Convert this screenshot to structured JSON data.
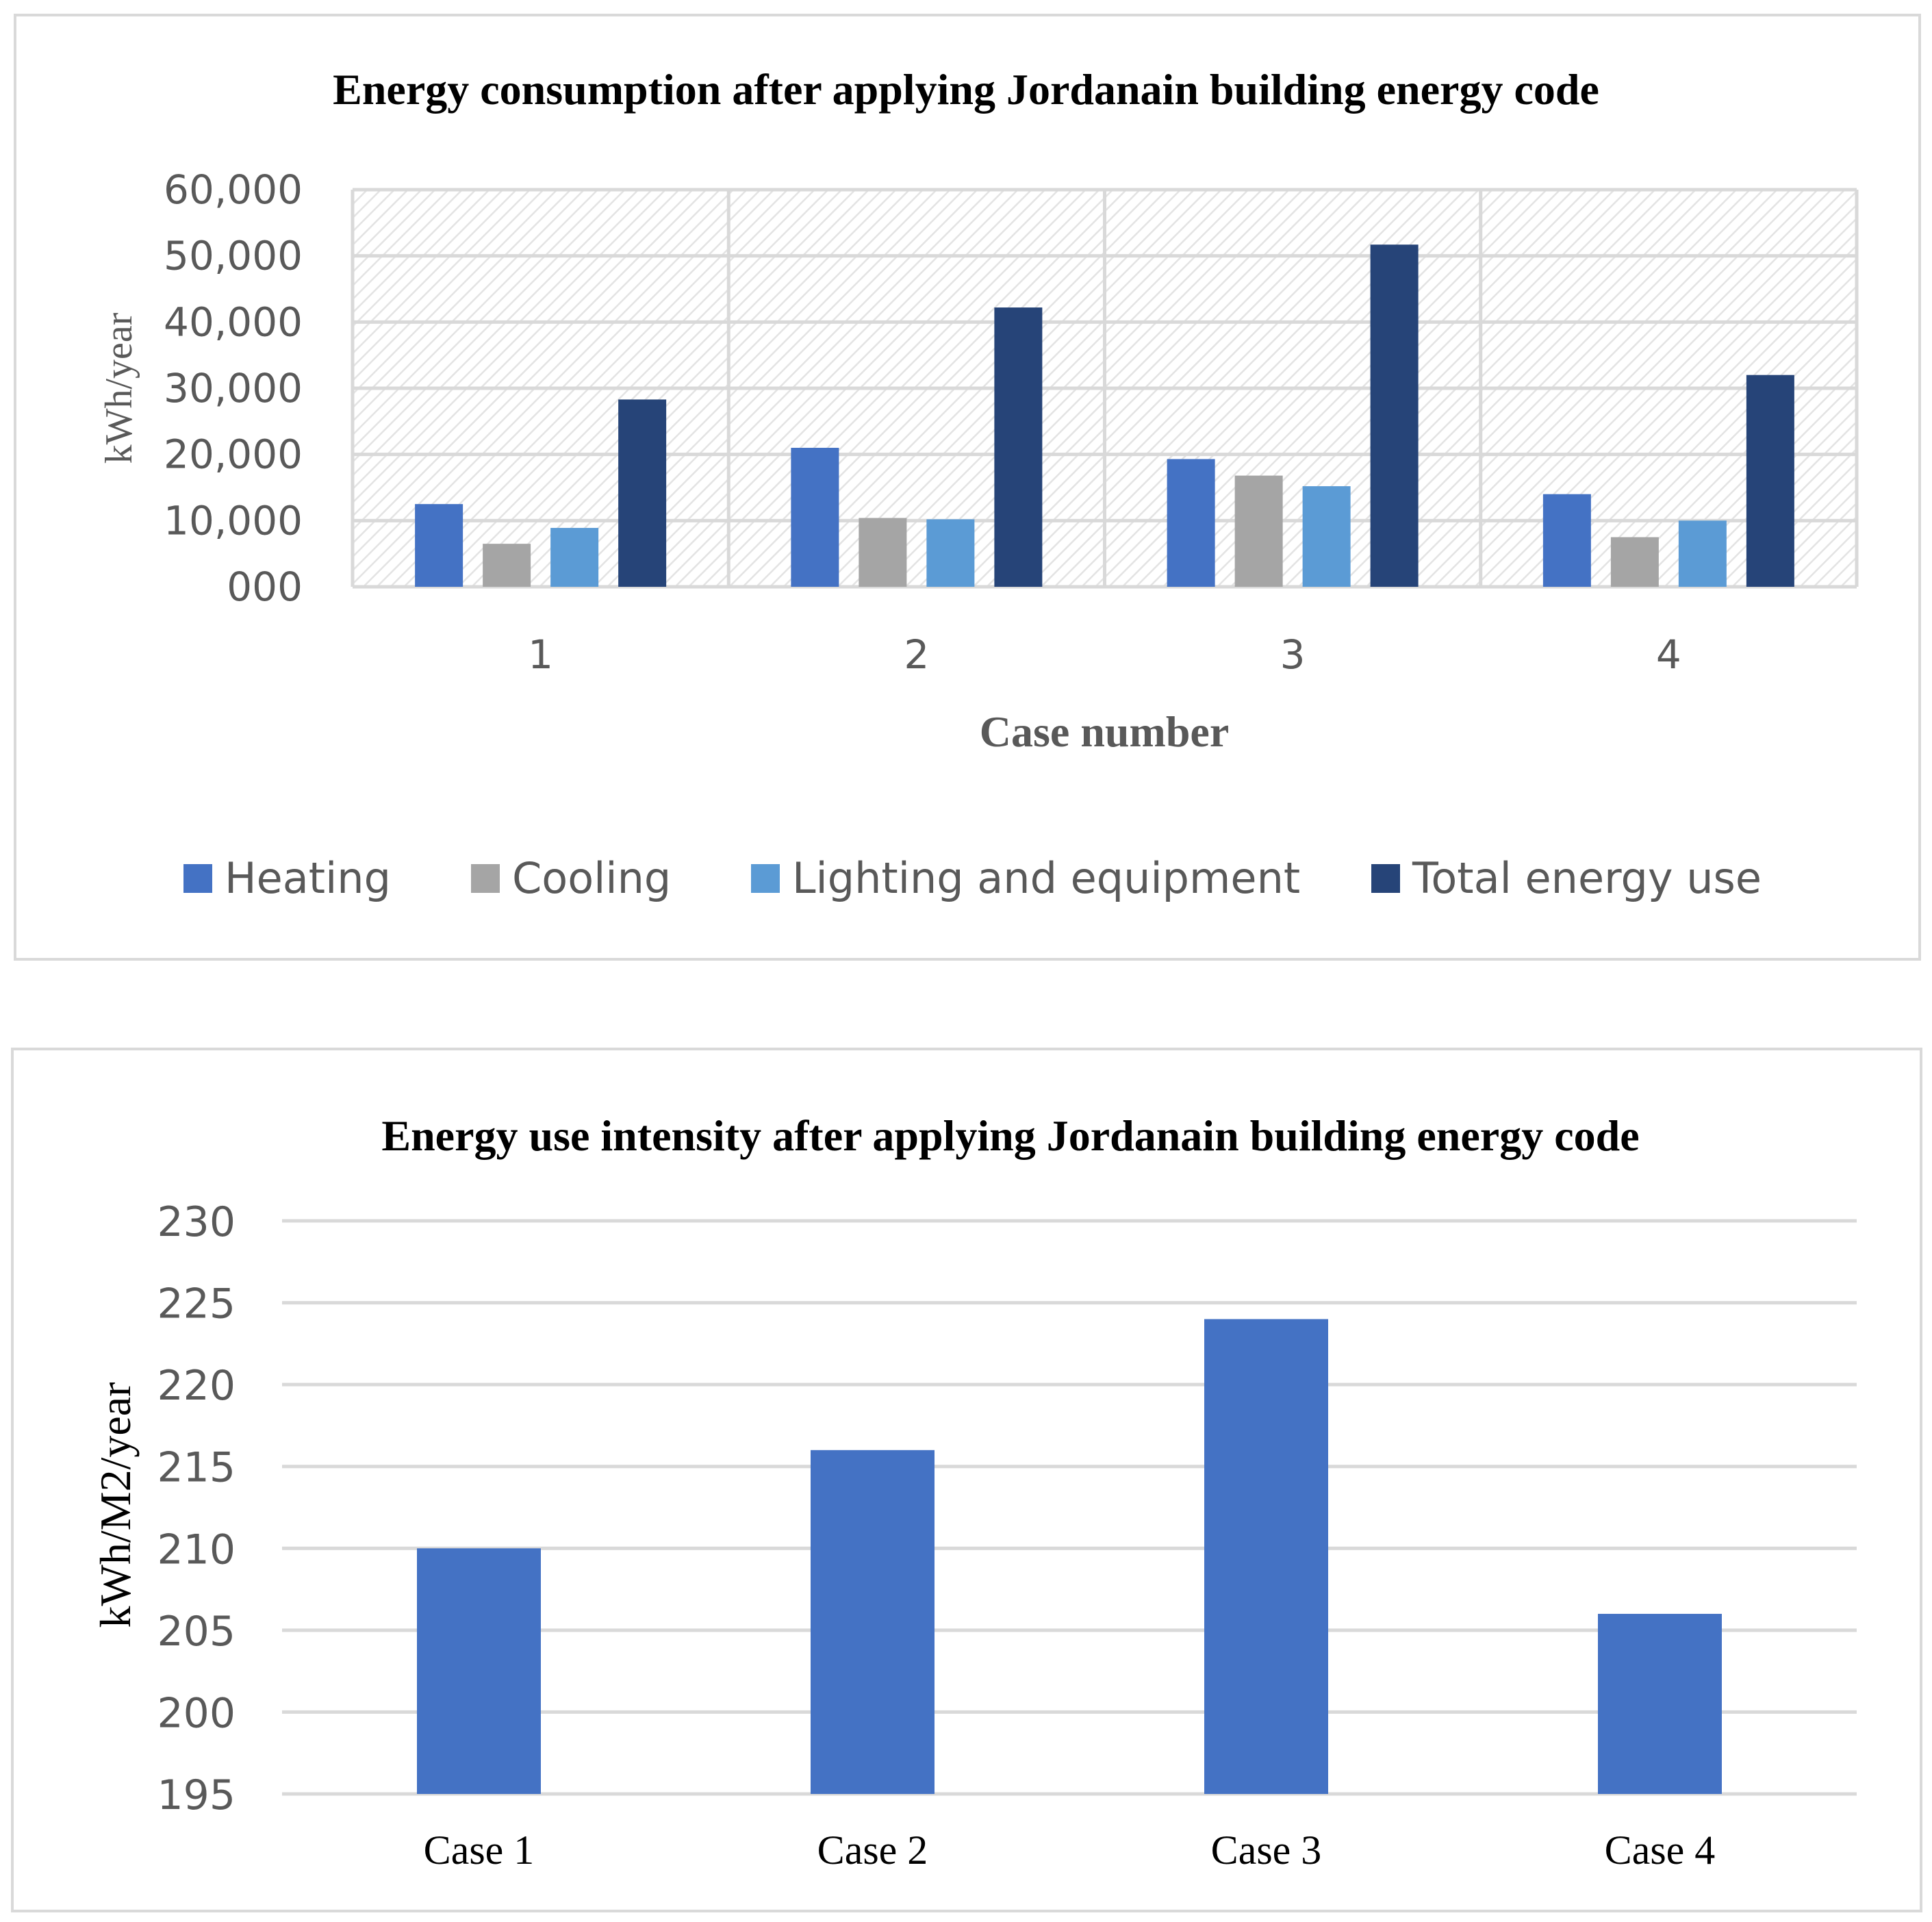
{
  "colors": {
    "heating": "#4472c4",
    "cooling": "#a5a5a5",
    "lighting": "#5b9bd5",
    "total": "#264478",
    "grid": "#d9d9d9"
  },
  "chart_data": [
    {
      "type": "bar",
      "title": "Energy consumption after applying Jordanain building energy code",
      "xlabel": "Case number",
      "ylabel": "kWh/year",
      "categories": [
        "1",
        "2",
        "3",
        "4"
      ],
      "ylim": [
        0,
        60000
      ],
      "yticks": [
        0,
        10000,
        20000,
        30000,
        40000,
        50000,
        60000
      ],
      "ytick_labels": [
        "000",
        "10,000",
        "20,000",
        "30,000",
        "40,000",
        "50,000",
        "60,000"
      ],
      "legend_position": "bottom",
      "series": [
        {
          "name": "Heating",
          "color_key": "heating",
          "values": [
            12500,
            21000,
            19300,
            14000
          ]
        },
        {
          "name": "Cooling",
          "color_key": "cooling",
          "values": [
            6500,
            10400,
            16800,
            7500
          ]
        },
        {
          "name": "Lighting and equipment",
          "color_key": "lighting",
          "values": [
            8900,
            10200,
            15200,
            10000
          ]
        },
        {
          "name": "Total energy use",
          "color_key": "total",
          "values": [
            28300,
            42200,
            51700,
            32000
          ]
        }
      ]
    },
    {
      "type": "bar",
      "title": "Energy use intensity after applying Jordanain building energy code",
      "xlabel": "",
      "ylabel": "kWh/M2/year",
      "categories": [
        "Case 1",
        "Case 2",
        "Case 3",
        "Case 4"
      ],
      "ylim": [
        195,
        230
      ],
      "yticks": [
        195,
        200,
        205,
        210,
        215,
        220,
        225,
        230
      ],
      "ytick_labels": [
        "195",
        "200",
        "205",
        "210",
        "215",
        "220",
        "225",
        "230"
      ],
      "series": [
        {
          "name": "Energy use intensity",
          "color_key": "heating",
          "values": [
            210,
            216,
            224,
            206
          ]
        }
      ]
    }
  ]
}
